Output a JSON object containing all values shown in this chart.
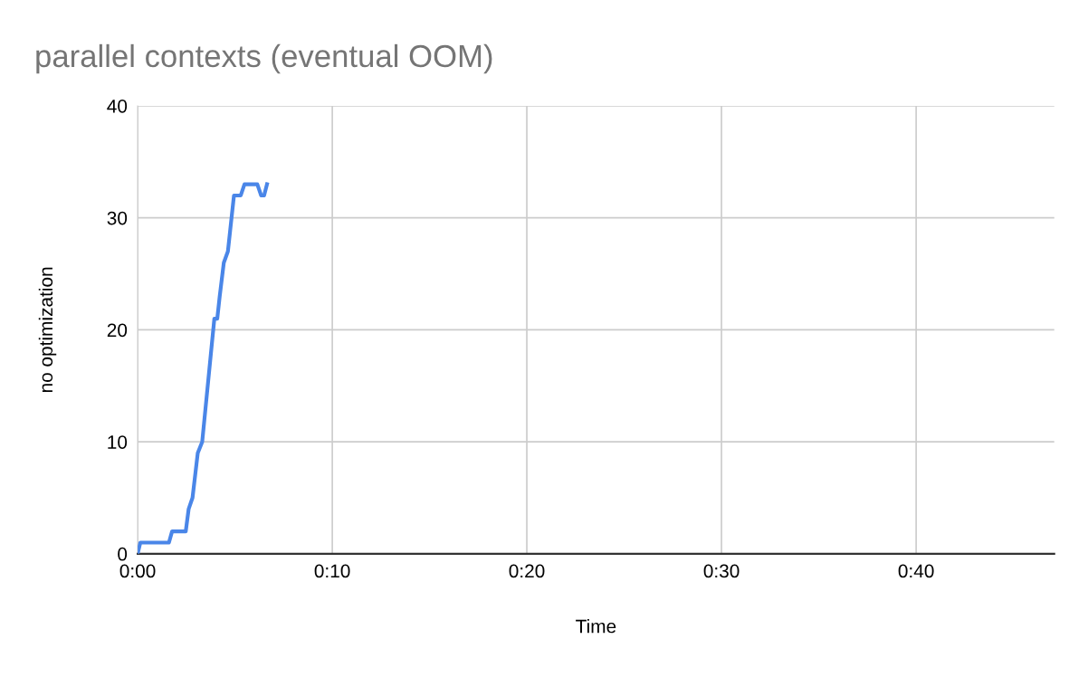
{
  "chart_data": {
    "type": "line",
    "title": "parallel contexts (eventual OOM)",
    "xlabel": "Time",
    "ylabel": "no optimization",
    "x": [
      0,
      0.0023,
      0.0268,
      0.0295,
      0.0412,
      0.0437,
      0.047,
      0.0515,
      0.0553,
      0.0657,
      0.0682,
      0.0703,
      0.0738,
      0.0773,
      0.0825,
      0.0883,
      0.0915,
      0.1025,
      0.1058,
      0.1083,
      0.1108
    ],
    "series": [
      {
        "color": "#4a86e8",
        "values": [
          0,
          1,
          1,
          2,
          2,
          4,
          5,
          9,
          10,
          21,
          21,
          23,
          26,
          27,
          32,
          32,
          33,
          33,
          32,
          32,
          33
        ]
      }
    ],
    "xlim": [
      0,
      0.785
    ],
    "xticks": [
      {
        "value": 0,
        "label": "0:00"
      },
      {
        "value": 0.1667,
        "label": "0:10"
      },
      {
        "value": 0.3333,
        "label": "0:20"
      },
      {
        "value": 0.5,
        "label": "0:30"
      },
      {
        "value": 0.6667,
        "label": "0:40"
      }
    ],
    "ylim": [
      0,
      40
    ],
    "yticks": [
      0,
      10,
      20,
      30,
      40
    ],
    "grid": true,
    "marker": "none",
    "line_style": "solid"
  }
}
